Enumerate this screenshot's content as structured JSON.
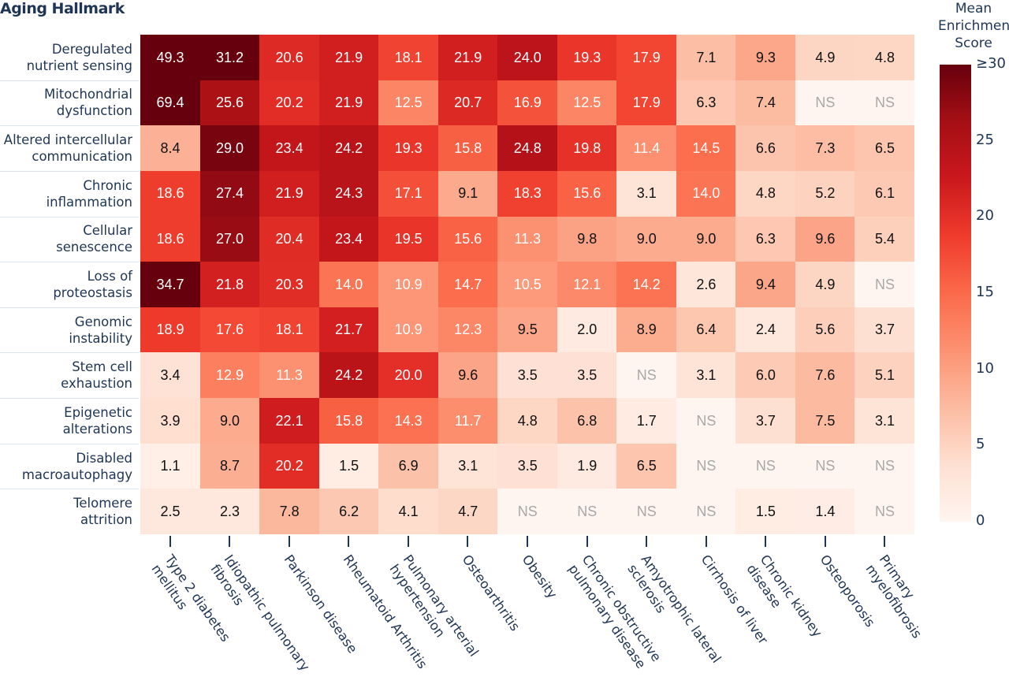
{
  "chart_data": {
    "type": "heatmap",
    "title": "Aging Hallmark",
    "rows": [
      "Deregulated\nnutrient sensing",
      "Mitochondrial\ndysfunction",
      "Altered intercellular\ncommunication",
      "Chronic\ninflammation",
      "Cellular\nsenescence",
      "Loss of\nproteostasis",
      "Genomic\ninstability",
      "Stem cell\nexhaustion",
      "Epigenetic\nalterations",
      "Disabled\nmacroautophagy",
      "Telomere\nattrition"
    ],
    "columns": [
      "Type 2 diabetes\nmellitus",
      "Idiopathic pulmonary\nfibrosis",
      "Parkinson disease",
      "Rheumatoid Arthritis",
      "Pulmonary arterial\nhypertension",
      "Osteoarthritis",
      "Obesity",
      "Chronic obstructive\npulmonary disease",
      "Amyotrophic lateral\nsclerosis",
      "Cirrhosis of liver",
      "Chronic kidney\ndisease",
      "Osteoporosis",
      "Primary\nmyelofibrosis"
    ],
    "values": [
      [
        "49.3",
        "31.2",
        "20.6",
        "21.9",
        "18.1",
        "21.9",
        "24.0",
        "19.3",
        "17.9",
        "7.1",
        "9.3",
        "4.9",
        "4.8"
      ],
      [
        "69.4",
        "25.6",
        "20.2",
        "21.9",
        "12.5",
        "20.7",
        "16.9",
        "12.5",
        "17.9",
        "6.3",
        "7.4",
        "NS",
        "NS"
      ],
      [
        "8.4",
        "29.0",
        "23.4",
        "24.2",
        "19.3",
        "15.8",
        "24.8",
        "19.8",
        "11.4",
        "14.5",
        "6.6",
        "7.3",
        "6.5"
      ],
      [
        "18.6",
        "27.4",
        "21.9",
        "24.3",
        "17.1",
        "9.1",
        "18.3",
        "15.6",
        "3.1",
        "14.0",
        "4.8",
        "5.2",
        "6.1"
      ],
      [
        "18.6",
        "27.0",
        "20.4",
        "23.4",
        "19.5",
        "15.6",
        "11.3",
        "9.8",
        "9.0",
        "9.0",
        "6.3",
        "9.6",
        "5.4"
      ],
      [
        "34.7",
        "21.8",
        "20.3",
        "14.0",
        "10.9",
        "14.7",
        "10.5",
        "12.1",
        "14.2",
        "2.6",
        "9.4",
        "4.9",
        "NS"
      ],
      [
        "18.9",
        "17.6",
        "18.1",
        "21.7",
        "10.9",
        "12.3",
        "9.5",
        "2.0",
        "8.9",
        "6.4",
        "2.4",
        "5.6",
        "3.7"
      ],
      [
        "3.4",
        "12.9",
        "11.3",
        "24.2",
        "20.0",
        "9.6",
        "3.5",
        "3.5",
        "NS",
        "3.1",
        "6.0",
        "7.6",
        "5.1"
      ],
      [
        "3.9",
        "9.0",
        "22.1",
        "15.8",
        "14.3",
        "11.7",
        "4.8",
        "6.8",
        "1.7",
        "NS",
        "3.7",
        "7.5",
        "3.1"
      ],
      [
        "1.1",
        "8.7",
        "20.2",
        "1.5",
        "6.9",
        "3.1",
        "3.5",
        "1.9",
        "6.5",
        "NS",
        "NS",
        "NS",
        "NS"
      ],
      [
        "2.5",
        "2.3",
        "7.8",
        "6.2",
        "4.1",
        "4.7",
        "NS",
        "NS",
        "NS",
        "NS",
        "1.5",
        "1.4",
        "NS"
      ]
    ],
    "colorbar": {
      "title": "Mean\nEnrichment\nScore",
      "range": [
        0,
        30
      ],
      "ticks": [
        "0",
        "5",
        "10",
        "15",
        "20",
        "25",
        "≥30"
      ],
      "colorscale": [
        "#fff5f0",
        "#fee0d2",
        "#fcbba1",
        "#fc9272",
        "#fb6a4a",
        "#ef3b2c",
        "#cb181d",
        "#a50f15",
        "#67000d"
      ]
    },
    "na_label": "NS",
    "na_color": "#fff5f0"
  }
}
